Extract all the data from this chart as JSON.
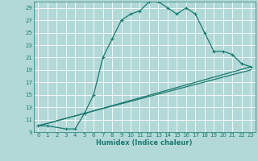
{
  "xlabel": "Humidex (Indice chaleur)",
  "bg_color": "#b2d8d8",
  "grid_color": "#ffffff",
  "line_color": "#1a7a6e",
  "xlim": [
    -0.5,
    23.5
  ],
  "ylim": [
    9,
    30
  ],
  "xticks": [
    0,
    1,
    2,
    3,
    4,
    5,
    6,
    7,
    8,
    9,
    10,
    11,
    12,
    13,
    14,
    15,
    16,
    17,
    18,
    19,
    20,
    21,
    22,
    23
  ],
  "yticks": [
    9,
    11,
    13,
    15,
    17,
    19,
    21,
    23,
    25,
    27,
    29
  ],
  "curve1_x": [
    0,
    1,
    3,
    4,
    5,
    6,
    7,
    8,
    9,
    10,
    11,
    12,
    13,
    14,
    15,
    16,
    17,
    18,
    19,
    20,
    21,
    22,
    23
  ],
  "curve1_y": [
    10,
    10,
    9.5,
    9.5,
    12,
    15,
    21,
    24,
    27,
    28,
    28.5,
    30,
    30,
    29,
    28,
    29,
    28,
    25,
    22,
    22,
    21.5,
    20,
    19.5
  ],
  "curve2_x": [
    0,
    5,
    23
  ],
  "curve2_y": [
    10,
    12,
    19.5
  ],
  "curve3_x": [
    0,
    5,
    23
  ],
  "curve3_y": [
    10,
    12,
    19
  ]
}
